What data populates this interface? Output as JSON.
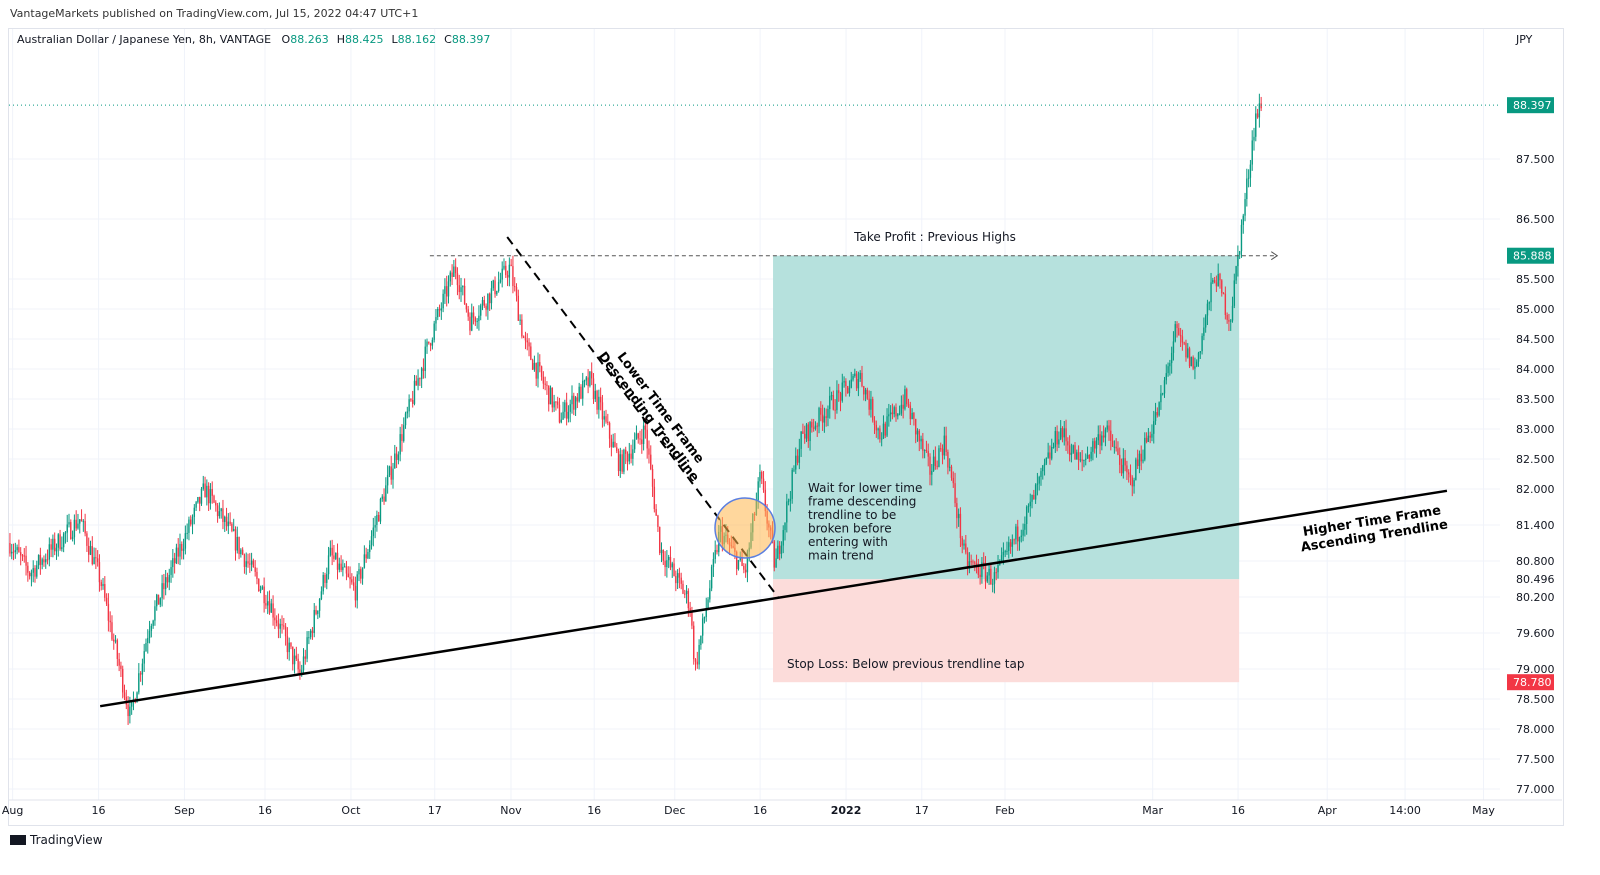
{
  "published": "VantageMarkets published on TradingView.com, Jul 15, 2022 04:47 UTC+1",
  "symbol": "Australian Dollar / Japanese Yen, 8h, VANTAGE",
  "ohlc": {
    "o_label": "O",
    "o": "88.263",
    "h_label": "H",
    "h": "88.425",
    "l_label": "L",
    "l": "88.162",
    "c_label": "C",
    "c": "88.397"
  },
  "currency": "JPY",
  "brand": "TradingView",
  "colors": {
    "up": "#089981",
    "down": "#f23645",
    "profit": "#b2dfdb",
    "loss": "#fcdcda",
    "line": "#000000"
  },
  "chart_data": {
    "type": "candlestick",
    "price_ticks": [
      "87.500",
      "86.500",
      "85.500",
      "85.000",
      "84.500",
      "84.000",
      "83.500",
      "83.000",
      "82.500",
      "82.000",
      "81.400",
      "80.800",
      "80.200",
      "79.600",
      "79.000",
      "78.500",
      "78.000",
      "77.500",
      "77.000"
    ],
    "price_tick_values": [
      87.5,
      86.5,
      85.5,
      85.0,
      84.5,
      84.0,
      83.5,
      83.0,
      82.5,
      82.0,
      81.4,
      80.8,
      80.2,
      79.6,
      79.0,
      78.5,
      78.0,
      77.5,
      77.0
    ],
    "time_ticks": [
      {
        "label": "Aug",
        "day": -1
      },
      {
        "label": "16",
        "day": 15
      },
      {
        "label": "Sep",
        "day": 31
      },
      {
        "label": "16",
        "day": 46
      },
      {
        "label": "Oct",
        "day": 62
      },
      {
        "label": "17",
        "day": 77.6
      },
      {
        "label": "Nov",
        "day": 91.8
      },
      {
        "label": "16",
        "day": 107.3
      },
      {
        "label": "Dec",
        "day": 122.3
      },
      {
        "label": "16",
        "day": 138.2
      },
      {
        "label": "2022",
        "day": 154.2
      },
      {
        "label": "17",
        "day": 168.3
      },
      {
        "label": "Feb",
        "day": 183.8
      },
      {
        "label": "Mar",
        "day": 211.3
      },
      {
        "label": "16",
        "day": 227.2
      },
      {
        "label": "Apr",
        "day": 243.8
      },
      {
        "label": "14:00",
        "day": 258.3
      },
      {
        "label": "May",
        "day": 272.9
      }
    ],
    "waypoints": [
      [
        -1.5,
        81.1
      ],
      [
        2.2,
        80.6
      ],
      [
        11.5,
        81.5
      ],
      [
        15.3,
        80.5
      ],
      [
        20.9,
        78.2
      ],
      [
        24.6,
        79.8
      ],
      [
        34.8,
        82.0
      ],
      [
        41.3,
        81.0
      ],
      [
        46.9,
        80.1
      ],
      [
        52.5,
        78.9
      ],
      [
        58.1,
        80.9
      ],
      [
        62.8,
        80.3
      ],
      [
        71.1,
        82.8
      ],
      [
        76.7,
        84.5
      ],
      [
        81.4,
        85.7
      ],
      [
        84.2,
        84.8
      ],
      [
        91.6,
        85.7
      ],
      [
        94.4,
        84.4
      ],
      [
        100.9,
        83.2
      ],
      [
        106.5,
        83.8
      ],
      [
        112.1,
        82.4
      ],
      [
        116.8,
        83.0
      ],
      [
        119.6,
        81.0
      ],
      [
        125.1,
        80.1
      ],
      [
        126.1,
        79.0
      ],
      [
        130.7,
        81.3
      ],
      [
        135.4,
        80.6
      ],
      [
        138.2,
        82.2
      ],
      [
        141,
        80.7
      ],
      [
        145.6,
        82.8
      ],
      [
        151.2,
        83.4
      ],
      [
        156.8,
        83.9
      ],
      [
        160.5,
        82.9
      ],
      [
        165.2,
        83.5
      ],
      [
        169.8,
        82.3
      ],
      [
        172.6,
        82.8
      ],
      [
        176.4,
        80.8
      ],
      [
        181.9,
        80.5
      ],
      [
        188.5,
        81.7
      ],
      [
        194,
        83.0
      ],
      [
        197.8,
        82.4
      ],
      [
        202.4,
        83.0
      ],
      [
        207.1,
        82.1
      ],
      [
        212.7,
        83.4
      ],
      [
        215.5,
        84.6
      ],
      [
        219.2,
        84.0
      ],
      [
        222.9,
        85.6
      ],
      [
        225.7,
        84.8
      ],
      [
        227.2,
        85.9
      ],
      [
        228.5,
        86.8
      ],
      [
        230.4,
        88.2
      ],
      [
        231.7,
        88.4
      ]
    ],
    "last_price": "88.397",
    "last_price_value": 88.397,
    "take_profit": "85.888",
    "take_profit_value": 85.888,
    "entry": "80.496",
    "entry_value": 80.496,
    "stop_loss": "78.780",
    "stop_loss_value": 78.78,
    "position_days": [
      140.6,
      227.4
    ],
    "ascending_trendline": [
      [
        15.3,
        78.38
      ],
      [
        266.1,
        81.97
      ]
    ],
    "descending_trendline": [
      [
        91.1,
        86.2
      ],
      [
        141.5,
        80.2
      ]
    ]
  },
  "annotations": {
    "take_profit": "Take Profit : Previous Highs",
    "stop_loss": "Stop Loss: Below previous trendline tap",
    "wait": [
      "Wait for lower time",
      "frame descending",
      "trendline to be",
      "broken before",
      "entering with",
      "main trend"
    ],
    "lower_tf": [
      "Lower Time Frame",
      "Descending Trendline"
    ],
    "higher_tf": [
      "Higher Time Frame",
      "Ascending Trendline"
    ]
  }
}
